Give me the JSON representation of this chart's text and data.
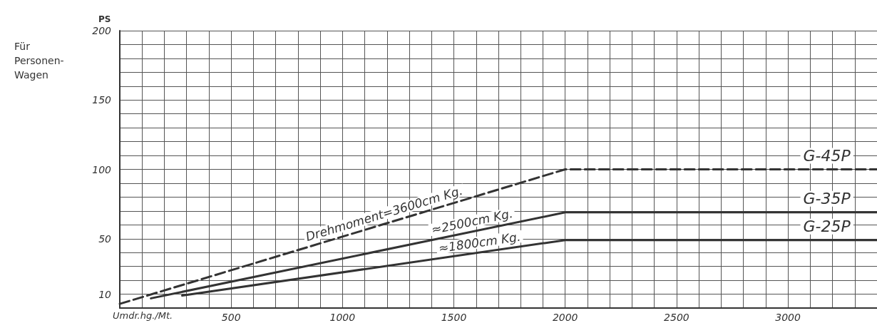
{
  "chart_data": {
    "type": "line",
    "ylabel": "PS",
    "xlabel": "Umdr.hg./Mt.",
    "xlim": [
      0,
      3400
    ],
    "xticks": [
      500,
      1000,
      1500,
      2000,
      2500,
      3000
    ],
    "ylim": [
      0,
      200
    ],
    "yticks": [
      10,
      50,
      100,
      150,
      200
    ],
    "grid": true,
    "legend": false,
    "marker": "none",
    "series": [
      {
        "name": "G-45P",
        "color": "#333333",
        "line_style": "dashed",
        "x": [
          0,
          2000,
          3400
        ],
        "values": [
          3,
          100,
          100
        ]
      },
      {
        "name": "G-35P",
        "color": "#333333",
        "line_style": "solid",
        "x": [
          140,
          2000,
          3400
        ],
        "values": [
          7,
          69,
          69
        ]
      },
      {
        "name": "G-25P",
        "color": "#333333",
        "line_style": "solid",
        "x": [
          280,
          2000,
          3400
        ],
        "values": [
          9,
          49,
          49
        ]
      }
    ],
    "annotations": [
      "Für Personen-Wagen",
      "Drehmoment=3600cm Kg.",
      "≈2500cm Kg.",
      "≈1800cm Kg."
    ]
  }
}
